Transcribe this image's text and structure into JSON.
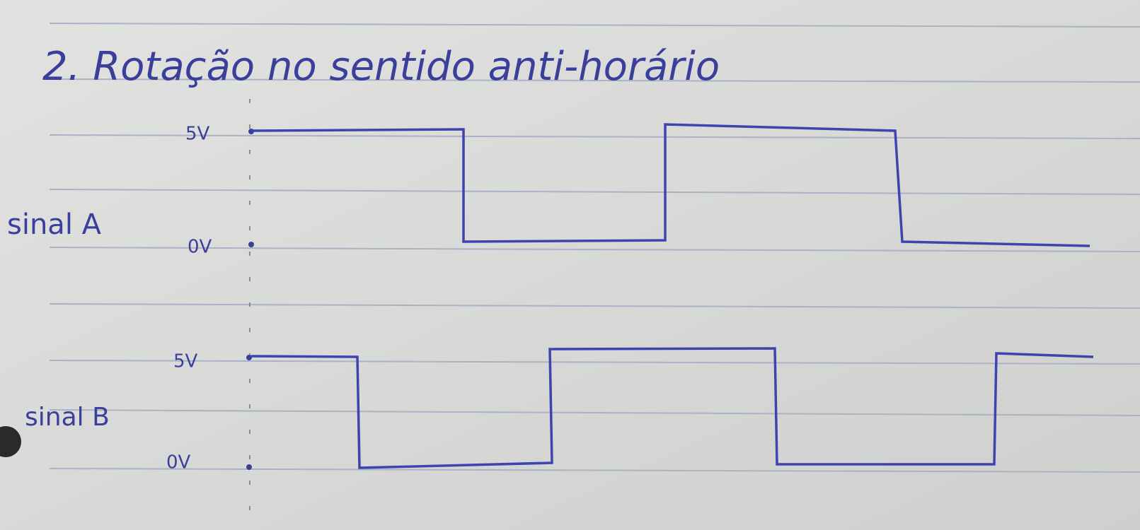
{
  "title": "2. Rotação no sentido anti-horário",
  "signals": [
    {
      "label": "sinal A",
      "high": "5V",
      "low": "0V"
    },
    {
      "label": "sinal B",
      "high": "5V",
      "low": "0V"
    }
  ]
}
